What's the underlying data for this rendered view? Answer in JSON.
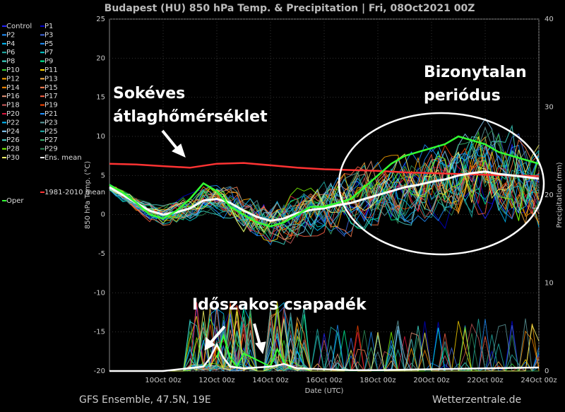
{
  "chart_data": {
    "type": "line",
    "title": "Budapest  (HU)  850 hPa Temp. & Precipitation | Fri, 08Oct2021 00Z",
    "ylabel": "850 hPa Temp. (°C)",
    "y2label": "Precipitation (mm)",
    "xlabel": "Date (UTC)",
    "ylim": [
      -20,
      25
    ],
    "y2lim": [
      0,
      40
    ],
    "xlim_hours": [
      0,
      384
    ],
    "x_start": "08Oct 00z",
    "yticks": [
      "25",
      "20",
      "15",
      "10",
      "5",
      "0",
      "-5",
      "-10",
      "-15",
      "-20"
    ],
    "y2ticks": [
      "40",
      "30",
      "20",
      "10",
      "0"
    ],
    "xticks": [
      "10Oct 00z",
      "12Oct 00z",
      "14Oct 00z",
      "16Oct 00z",
      "18Oct 00z",
      "20Oct 00z",
      "22Oct 00z",
      "24Oct 00z"
    ],
    "xtick_hours": [
      48,
      96,
      144,
      192,
      240,
      288,
      336,
      384
    ],
    "grid": true,
    "legend_position": "left",
    "legend": [
      "Control",
      "P1",
      "P2",
      "P3",
      "P4",
      "P5",
      "P6",
      "P7",
      "P8",
      "P9",
      "P10",
      "P11",
      "P12",
      "P13",
      "P14",
      "P15",
      "P16",
      "P17",
      "P18",
      "P19",
      "P20",
      "P21",
      "P22",
      "P23",
      "P24",
      "P25",
      "P26",
      "P27",
      "P28",
      "P29",
      "P30",
      "Ens. mean",
      "1981-2010 mean",
      "Oper"
    ],
    "legend_colors": [
      "#2222ff",
      "#0000cc",
      "#1e90ff",
      "#4169e1",
      "#00bfff",
      "#1e90ff",
      "#20b2aa",
      "#00ced1",
      "#40e0d0",
      "#00fa9a",
      "#32cd32",
      "#ffd700",
      "#ffa500",
      "#ffb347",
      "#ff8c00",
      "#ff7f50",
      "#e9967a",
      "#ff6347",
      "#cd5c5c",
      "#ff4500",
      "#dc143c",
      "#1e90ff",
      "#00bfff",
      "#5f9ea0",
      "#87cefa",
      "#20b2aa",
      "#48d1cc",
      "#3cb371",
      "#7cfc00",
      "#2e8b57",
      "#ffff66",
      "#ffffff",
      "#ff3333",
      "#33ff33"
    ],
    "series": [
      {
        "name": "1981-2010 mean",
        "color": "#ff3333",
        "x": [
          0,
          24,
          48,
          72,
          96,
          120,
          144,
          168,
          192,
          216,
          240,
          264,
          288,
          312,
          336,
          360,
          384
        ],
        "values": [
          6.5,
          6.4,
          6.2,
          6.0,
          6.5,
          6.6,
          6.3,
          6.0,
          5.8,
          5.7,
          5.6,
          5.4,
          5.3,
          5.2,
          5.1,
          5.0,
          4.9
        ]
      },
      {
        "name": "Ens. mean",
        "color": "#ffffff",
        "x": [
          0,
          12,
          24,
          36,
          48,
          60,
          72,
          84,
          96,
          108,
          120,
          132,
          144,
          156,
          168,
          180,
          192,
          204,
          216,
          228,
          240,
          252,
          264,
          276,
          288,
          300,
          312,
          324,
          336,
          348,
          360,
          372,
          384
        ],
        "values": [
          3.5,
          2.5,
          1.5,
          0.5,
          0.0,
          0.3,
          0.8,
          1.8,
          2.0,
          1.5,
          0.5,
          -0.3,
          -0.8,
          -0.5,
          0.2,
          0.6,
          0.8,
          1.2,
          1.5,
          2.0,
          2.5,
          3.0,
          3.5,
          3.8,
          4.2,
          4.5,
          5.0,
          5.3,
          5.5,
          5.2,
          5.0,
          4.8,
          4.6
        ]
      },
      {
        "name": "Oper",
        "color": "#33ff33",
        "x": [
          0,
          12,
          24,
          36,
          48,
          60,
          72,
          84,
          96,
          108,
          120,
          132,
          144,
          156,
          168,
          180,
          192,
          204,
          216,
          228,
          240,
          252,
          264,
          276,
          288,
          300,
          312,
          324,
          336,
          348,
          360,
          372,
          384
        ],
        "values": [
          3.8,
          2.8,
          1.5,
          0.0,
          -0.5,
          0.5,
          2.0,
          4.0,
          3.0,
          1.0,
          0.0,
          -1.0,
          -1.5,
          -1.0,
          0.0,
          1.0,
          1.0,
          1.5,
          2.0,
          3.5,
          5.0,
          6.5,
          7.5,
          8.0,
          8.5,
          9.0,
          10.0,
          9.5,
          9.0,
          8.0,
          7.5,
          7.0,
          6.5
        ]
      }
    ],
    "precip_oper": {
      "x": [
        96,
        102,
        108,
        114,
        120,
        144,
        150,
        156,
        162
      ],
      "values": [
        1.5,
        4.0,
        1.5,
        0.5,
        2.0,
        0.5,
        2.5,
        1.0,
        0.3
      ]
    },
    "precip_mean": {
      "x": [
        0,
        48,
        84,
        90,
        96,
        102,
        108,
        120,
        144,
        156,
        168,
        192,
        216,
        240,
        288,
        336,
        384
      ],
      "values": [
        0,
        0,
        0.5,
        1.5,
        3.0,
        1.5,
        0.5,
        0.3,
        0.5,
        0.8,
        0.3,
        0.2,
        0.1,
        0.1,
        0.2,
        0.3,
        0.4
      ]
    }
  },
  "footer": {
    "left": "GFS Ensemble, 47.5N, 19E",
    "right": "Wetterzentrale.de"
  },
  "annotations": {
    "a1_line1": "Sokéves",
    "a1_line2": "átlaghőmérséklet",
    "a2_line1": "Bizonytalan",
    "a2_line2": "periódus",
    "a3": "Időszakos csapadék"
  }
}
